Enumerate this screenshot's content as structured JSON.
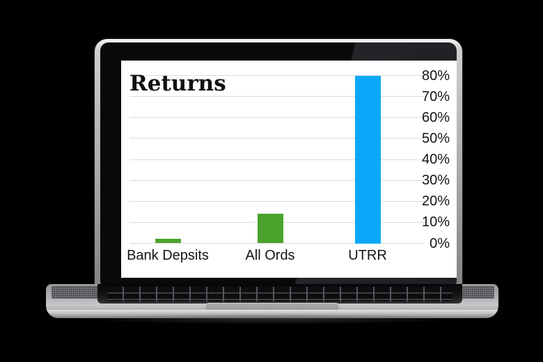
{
  "background_color": "#000000",
  "accent_colors": {
    "green": "#4aa32c",
    "blue": "#0aa8f8"
  },
  "chart_data": {
    "type": "bar",
    "title": "Returns",
    "categories": [
      "Bank Depsits",
      "All Ords",
      "UTRR"
    ],
    "values": [
      2,
      14,
      80
    ],
    "bar_colors": [
      "#4aa32c",
      "#4aa32c",
      "#0aa8f8"
    ],
    "xlabel": "",
    "ylabel": "",
    "ylim": [
      0,
      80
    ],
    "ytick_step": 10,
    "ytick_labels": [
      "0%",
      "10%",
      "20%",
      "30%",
      "40%",
      "50%",
      "60%",
      "70%",
      "80%"
    ],
    "ytick_side": "right",
    "grid": true,
    "legend": "none"
  }
}
